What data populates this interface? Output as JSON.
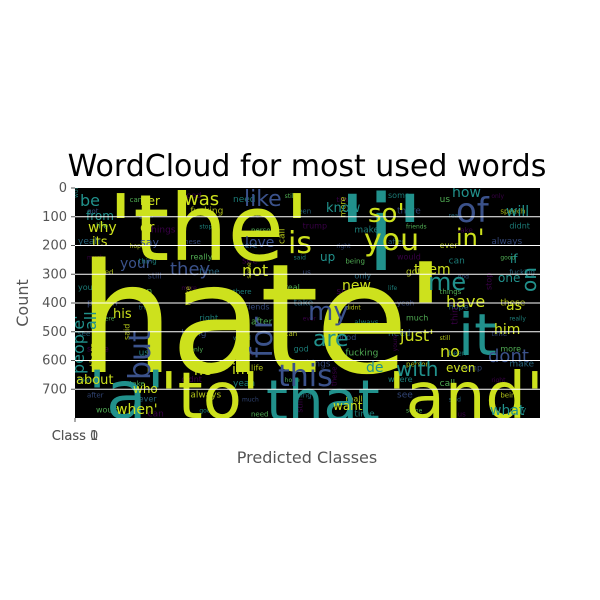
{
  "chart_data": {
    "type": "wordcloud",
    "title": "WordCloud for most used words",
    "xlabel": "Predicted Classes",
    "ylabel": "Count",
    "x_tick_labels": [
      "Class 0",
      "Class 1"
    ],
    "ylim": [
      0,
      800
    ],
    "y_ticks": [
      0,
      100,
      200,
      300,
      400,
      500,
      600,
      700
    ],
    "grid": true,
    "background_color": "#000000",
    "palette": [
      "#cde11d",
      "#21918c",
      "#3b528b",
      "#440154",
      "#5ec962",
      "#fde725"
    ],
    "words": [
      {
        "text": "hate'",
        "weight": 1.0,
        "color": "#cde11d"
      },
      {
        "text": "'the'",
        "weight": 0.62,
        "color": "#cde11d"
      },
      {
        "text": "'i'",
        "weight": 0.55,
        "color": "#21918c"
      },
      {
        "text": "'to'",
        "weight": 0.42,
        "color": "#cde11d"
      },
      {
        "text": "'a'",
        "weight": 0.42,
        "color": "#21918c"
      },
      {
        "text": "'and'",
        "weight": 0.4,
        "color": "#cde11d"
      },
      {
        "text": "that",
        "weight": 0.38,
        "color": "#21918c"
      },
      {
        "text": "it",
        "weight": 0.36,
        "color": "#21918c"
      },
      {
        "text": "of",
        "weight": 0.3,
        "color": "#3b528b"
      },
      {
        "text": "you",
        "weight": 0.28,
        "color": "#cde11d"
      },
      {
        "text": "is",
        "weight": 0.24,
        "color": "#cde11d"
      },
      {
        "text": "in'",
        "weight": 0.22,
        "color": "#cde11d"
      },
      {
        "text": "so'",
        "weight": 0.2,
        "color": "#cde11d"
      },
      {
        "text": "this",
        "weight": 0.2,
        "color": "#3b528b"
      },
      {
        "text": "for",
        "weight": 0.19,
        "color": "#3b528b"
      },
      {
        "text": "but",
        "weight": 0.18,
        "color": "#3b528b"
      },
      {
        "text": "my",
        "weight": 0.18,
        "color": "#3b528b"
      },
      {
        "text": "are",
        "weight": 0.17,
        "color": "#21918c"
      },
      {
        "text": "me",
        "weight": 0.17,
        "color": "#21918c"
      },
      {
        "text": "with",
        "weight": 0.15,
        "color": "#21918c"
      },
      {
        "text": "on",
        "weight": 0.14,
        "color": "#21918c"
      },
      {
        "text": "was",
        "weight": 0.13,
        "color": "#cde11d"
      },
      {
        "text": "like",
        "weight": 0.13,
        "color": "#3b528b"
      },
      {
        "text": "they",
        "weight": 0.12,
        "color": "#3b528b"
      },
      {
        "text": "people'",
        "weight": 0.12,
        "color": "#21918c"
      },
      {
        "text": "have",
        "weight": 0.12,
        "color": "#cde11d"
      },
      {
        "text": "just'",
        "weight": 0.11,
        "color": "#cde11d"
      },
      {
        "text": "be",
        "weight": 0.11,
        "color": "#21918c"
      },
      {
        "text": "not",
        "weight": 0.11,
        "color": "#cde11d"
      },
      {
        "text": "dont",
        "weight": 0.11,
        "color": "#3b528b"
      },
      {
        "text": "no",
        "weight": 0.1,
        "color": "#cde11d"
      },
      {
        "text": "all",
        "weight": 0.1,
        "color": "#21918c"
      },
      {
        "text": "love",
        "weight": 0.1,
        "color": "#3b528b"
      },
      {
        "text": "them",
        "weight": 0.1,
        "color": "#cde11d"
      },
      {
        "text": "he'",
        "weight": 0.1,
        "color": "#cde11d"
      },
      {
        "text": "her",
        "weight": 0.09,
        "color": "#cde11d"
      },
      {
        "text": "why",
        "weight": 0.09,
        "color": "#cde11d"
      },
      {
        "text": "or",
        "weight": 0.09,
        "color": "#cde11d"
      },
      {
        "text": "when'",
        "weight": 0.09,
        "color": "#cde11d"
      },
      {
        "text": "new",
        "weight": 0.09,
        "color": "#cde11d"
      },
      {
        "text": "its",
        "weight": 0.09,
        "color": "#cde11d"
      },
      {
        "text": "what",
        "weight": 0.09,
        "color": "#21918c"
      },
      {
        "text": "want",
        "weight": 0.08,
        "color": "#cde11d"
      },
      {
        "text": "will",
        "weight": 0.08,
        "color": "#21918c"
      },
      {
        "text": "how",
        "weight": 0.08,
        "color": "#21918c"
      },
      {
        "text": "as",
        "weight": 0.08,
        "color": "#cde11d"
      },
      {
        "text": "him",
        "weight": 0.08,
        "color": "#cde11d"
      },
      {
        "text": "im",
        "weight": 0.08,
        "color": "#cde11d"
      },
      {
        "text": "about",
        "weight": 0.08,
        "color": "#cde11d"
      },
      {
        "text": "his",
        "weight": 0.08,
        "color": "#cde11d"
      },
      {
        "text": "who",
        "weight": 0.08,
        "color": "#cde11d"
      },
      {
        "text": "your",
        "weight": 0.07,
        "color": "#3b528b"
      },
      {
        "text": "know",
        "weight": 0.07,
        "color": "#21918c"
      },
      {
        "text": "de",
        "weight": 0.07,
        "color": "#21918c"
      },
      {
        "text": "even",
        "weight": 0.07,
        "color": "#cde11d"
      },
      {
        "text": "from",
        "weight": 0.07,
        "color": "#21918c"
      },
      {
        "text": "say",
        "weight": 0.06,
        "color": "#3b528b"
      },
      {
        "text": "one",
        "weight": 0.06,
        "color": "#21918c"
      },
      {
        "text": "up",
        "weight": 0.06,
        "color": "#21918c"
      },
      {
        "text": "if",
        "weight": 0.06,
        "color": "#21918c"
      },
      {
        "text": "would",
        "weight": 0.06,
        "color": "#21918c"
      },
      {
        "text": "can",
        "weight": 0.06,
        "color": "#21918c"
      },
      {
        "text": "good",
        "weight": 0.05,
        "color": "#5ec962"
      },
      {
        "text": "need",
        "weight": 0.05,
        "color": "#21918c"
      },
      {
        "text": "still",
        "weight": 0.05,
        "color": "#21918c"
      },
      {
        "text": "time",
        "weight": 0.05,
        "color": "#21918c"
      },
      {
        "text": "some",
        "weight": 0.05,
        "color": "#21918c"
      },
      {
        "text": "us",
        "weight": 0.05,
        "color": "#21918c"
      },
      {
        "text": "only",
        "weight": 0.05,
        "color": "#21918c"
      },
      {
        "text": "got",
        "weight": 0.05,
        "color": "#3b528b"
      },
      {
        "text": "god",
        "weight": 0.05,
        "color": "#21918c"
      },
      {
        "text": "fucking",
        "weight": 0.05,
        "color": "#3b528b"
      },
      {
        "text": "youre",
        "weight": 0.05,
        "color": "#21918c"
      },
      {
        "text": "been",
        "weight": 0.05,
        "color": "#21918c"
      },
      {
        "text": "more",
        "weight": 0.05,
        "color": "#21918c"
      },
      {
        "text": "there",
        "weight": 0.05,
        "color": "#21918c"
      },
      {
        "text": "real",
        "weight": 0.05,
        "color": "#21918c"
      },
      {
        "text": "speech",
        "weight": 0.05,
        "color": "#21918c"
      },
      {
        "text": "life",
        "weight": 0.05,
        "color": "#3b528b"
      },
      {
        "text": "things",
        "weight": 0.05,
        "color": "#21918c"
      },
      {
        "text": "stop",
        "weight": 0.05,
        "color": "#21918c"
      },
      {
        "text": "person",
        "weight": 0.05,
        "color": "#21918c"
      },
      {
        "text": "trump",
        "weight": 0.05,
        "color": "#21918c"
      },
      {
        "text": "make",
        "weight": 0.05,
        "color": "#21918c"
      },
      {
        "text": "friends",
        "weight": 0.05,
        "color": "#21918c"
      },
      {
        "text": "take",
        "weight": 0.05,
        "color": "#21918c"
      },
      {
        "text": "didnt",
        "weight": 0.05,
        "color": "#21918c"
      },
      {
        "text": "yeah",
        "weight": 0.05,
        "color": "#21918c"
      },
      {
        "text": "hope",
        "weight": 0.05,
        "color": "#21918c"
      },
      {
        "text": "these",
        "weight": 0.05,
        "color": "#21918c"
      },
      {
        "text": "where",
        "weight": 0.05,
        "color": "#21918c"
      },
      {
        "text": "call",
        "weight": 0.05,
        "color": "#21918c"
      },
      {
        "text": "right",
        "weight": 0.05,
        "color": "#21918c"
      },
      {
        "text": "after",
        "weight": 0.05,
        "color": "#21918c"
      },
      {
        "text": "ever",
        "weight": 0.05,
        "color": "#21918c"
      },
      {
        "text": "always",
        "weight": 0.05,
        "color": "#21918c"
      },
      {
        "text": "much",
        "weight": 0.05,
        "color": "#21918c"
      },
      {
        "text": "thing",
        "weight": 0.05,
        "color": "#21918c"
      },
      {
        "text": "really",
        "weight": 0.05,
        "color": "#21918c"
      },
      {
        "text": "see",
        "weight": 0.05,
        "color": "#21918c"
      },
      {
        "text": "said",
        "weight": 0.05,
        "color": "#21918c"
      },
      {
        "text": "being",
        "weight": 0.05,
        "color": "#21918c"
      }
    ]
  }
}
